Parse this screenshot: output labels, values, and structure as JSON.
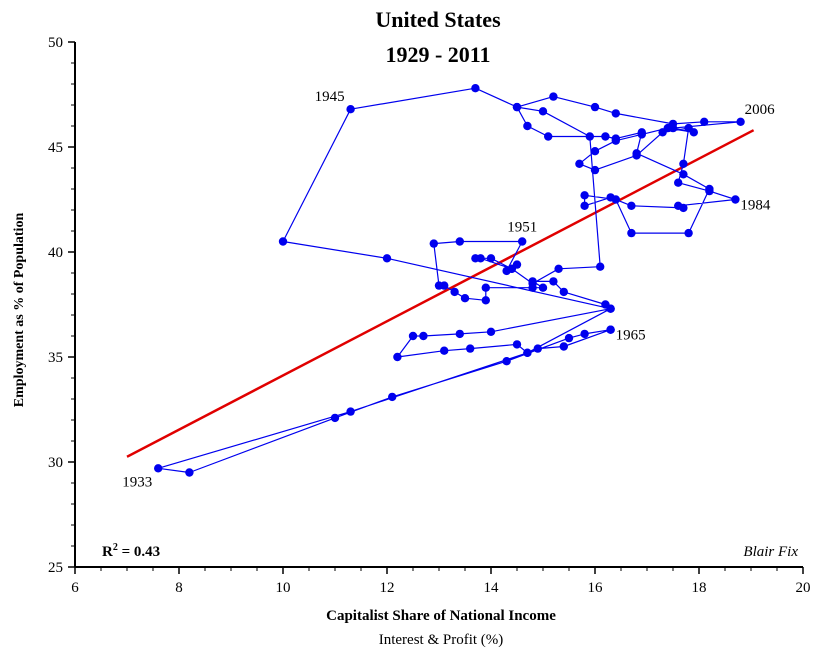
{
  "chart_data": {
    "type": "scatter",
    "title": "United States",
    "subtitle": "1929 - 2011",
    "xlabel": "Capitalist Share of National Income",
    "xlabel_sub": "Interest & Profit (%)",
    "ylabel": "Employment as % of Population",
    "xlim": [
      6,
      20
    ],
    "ylim": [
      25,
      50
    ],
    "x_ticks": [
      6,
      8,
      10,
      12,
      14,
      16,
      18,
      20
    ],
    "y_ticks": [
      25,
      30,
      35,
      40,
      45,
      50
    ],
    "grid": false,
    "r_squared_label": "R",
    "r_squared_sup": "2",
    "r_squared_value": " = 0.43",
    "credit": "Blair Fix",
    "colors": {
      "series": "#0000ee",
      "fit": "#e00000",
      "axis": "#000000"
    },
    "series": [
      {
        "points": [
          [
            16.3,
            36.3
          ],
          [
            15.8,
            36.1
          ],
          [
            15.5,
            35.9
          ],
          [
            14.3,
            34.8
          ],
          [
            12.1,
            33.1
          ],
          [
            11.0,
            32.1
          ],
          [
            8.2,
            29.5
          ],
          [
            7.6,
            29.7
          ],
          [
            11.3,
            32.4
          ],
          [
            14.7,
            35.2
          ],
          [
            16.3,
            37.3
          ],
          [
            12.0,
            39.7
          ],
          [
            10.0,
            40.5
          ],
          [
            11.3,
            46.8
          ],
          [
            13.7,
            47.8
          ],
          [
            14.5,
            46.9
          ],
          [
            15.2,
            47.4
          ],
          [
            16.0,
            46.9
          ],
          [
            16.4,
            46.6
          ],
          [
            17.5,
            46.1
          ],
          [
            18.1,
            46.2
          ],
          [
            18.8,
            46.2
          ],
          [
            17.5,
            45.9
          ],
          [
            17.9,
            45.7
          ],
          [
            17.4,
            45.9
          ],
          [
            16.9,
            45.6
          ],
          [
            16.4,
            45.3
          ],
          [
            16.0,
            44.8
          ],
          [
            15.7,
            44.2
          ],
          [
            16.0,
            43.9
          ],
          [
            16.8,
            44.6
          ],
          [
            17.3,
            45.7
          ],
          [
            17.8,
            45.9
          ],
          [
            17.7,
            44.2
          ],
          [
            17.6,
            43.3
          ],
          [
            18.2,
            42.9
          ],
          [
            18.7,
            42.5
          ],
          [
            17.6,
            42.2
          ],
          [
            17.7,
            42.1
          ],
          [
            16.7,
            42.2
          ],
          [
            16.3,
            42.6
          ],
          [
            15.8,
            42.2
          ],
          [
            15.8,
            42.7
          ],
          [
            16.4,
            42.5
          ],
          [
            16.7,
            40.9
          ],
          [
            17.8,
            40.9
          ],
          [
            18.2,
            43.0
          ],
          [
            17.7,
            43.7
          ],
          [
            16.8,
            44.7
          ],
          [
            16.9,
            45.7
          ],
          [
            16.4,
            45.4
          ],
          [
            16.2,
            45.5
          ],
          [
            15.1,
            45.5
          ],
          [
            14.7,
            46.0
          ],
          [
            14.5,
            46.9
          ],
          [
            15.0,
            46.7
          ],
          [
            15.9,
            45.5
          ],
          [
            16.1,
            39.3
          ],
          [
            15.3,
            39.2
          ],
          [
            14.8,
            38.5
          ],
          [
            14.4,
            39.2
          ],
          [
            13.8,
            39.7
          ],
          [
            13.7,
            39.7
          ],
          [
            14.0,
            39.7
          ],
          [
            14.4,
            39.2
          ],
          [
            14.5,
            39.4
          ],
          [
            14.3,
            39.1
          ],
          [
            14.6,
            40.5
          ],
          [
            13.4,
            40.5
          ],
          [
            12.9,
            40.4
          ],
          [
            13.0,
            38.4
          ],
          [
            13.1,
            38.4
          ],
          [
            13.3,
            38.1
          ],
          [
            13.5,
            37.8
          ],
          [
            13.9,
            37.7
          ],
          [
            13.9,
            38.3
          ],
          [
            14.8,
            38.3
          ],
          [
            15.0,
            38.3
          ],
          [
            14.8,
            38.6
          ],
          [
            15.2,
            38.6
          ],
          [
            15.4,
            38.1
          ],
          [
            16.2,
            37.5
          ],
          [
            16.3,
            37.3
          ],
          [
            14.0,
            36.2
          ],
          [
            13.4,
            36.1
          ],
          [
            12.7,
            36.0
          ],
          [
            12.5,
            36.0
          ],
          [
            12.2,
            35.0
          ],
          [
            13.1,
            35.3
          ],
          [
            13.6,
            35.4
          ],
          [
            14.5,
            35.6
          ],
          [
            14.7,
            35.2
          ],
          [
            14.9,
            35.4
          ],
          [
            15.4,
            35.5
          ],
          [
            16.3,
            36.3
          ]
        ]
      }
    ],
    "fit_line": {
      "x": [
        7.0,
        19.05
      ],
      "y": [
        30.25,
        45.8
      ]
    },
    "year_labels": [
      {
        "text": "1933",
        "x": 7.6,
        "y": 29.7,
        "anchor": "below-left"
      },
      {
        "text": "1945",
        "x": 11.3,
        "y": 46.8,
        "anchor": "above-left"
      },
      {
        "text": "1951",
        "x": 14.6,
        "y": 40.5,
        "anchor": "above"
      },
      {
        "text": "1965",
        "x": 16.3,
        "y": 36.3,
        "anchor": "right"
      },
      {
        "text": "1984",
        "x": 18.7,
        "y": 42.5,
        "anchor": "right"
      },
      {
        "text": "2006",
        "x": 18.8,
        "y": 46.2,
        "anchor": "above-right"
      }
    ]
  }
}
